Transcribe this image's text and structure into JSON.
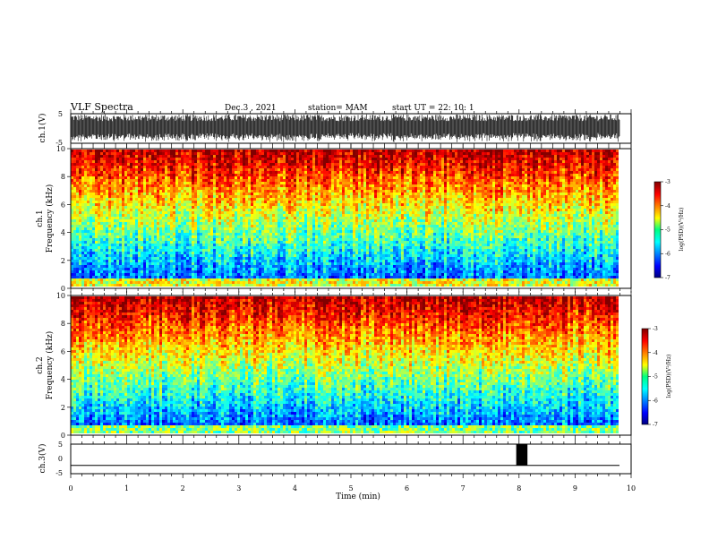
{
  "header": {
    "title": "VLF Spectra",
    "date": "Dec.3  , 2021",
    "station": "station= MAM",
    "start": "start  UT  =   22: 10: 1"
  },
  "chart_data": [
    {
      "type": "line",
      "name": "ch1-waveform",
      "ylabel": "ch.1(V)",
      "ylim": [
        -5,
        5
      ],
      "yticks": [
        "5",
        "-5"
      ],
      "xlim": [
        0,
        10
      ]
    },
    {
      "type": "heatmap",
      "name": "ch1-spectrogram",
      "ylabel_line1": "ch.1",
      "ylabel_line2": "Frequency  (kHz)",
      "ylim": [
        0,
        10
      ],
      "yticks": [
        "0",
        "2",
        "4",
        "6",
        "8",
        "10"
      ],
      "xlim": [
        0,
        9.8
      ],
      "colorbar": {
        "label": "log(PSD)(V²/Hz)",
        "range": [
          -7,
          -3
        ],
        "ticks": [
          "-3",
          "-4",
          "-5",
          "-6",
          "-7"
        ]
      }
    },
    {
      "type": "heatmap",
      "name": "ch2-spectrogram",
      "ylabel_line1": "ch.2",
      "ylabel_line2": "Frequency  (kHz)",
      "ylim": [
        0,
        10
      ],
      "yticks": [
        "0",
        "2",
        "4",
        "6",
        "8",
        "10"
      ],
      "xlim": [
        0,
        9.8
      ],
      "colorbar": {
        "label": "log(PSD)(V²/Hz)",
        "range": [
          -7,
          -3
        ],
        "ticks": [
          "-3",
          "-4",
          "-5",
          "-6",
          "-7"
        ]
      }
    },
    {
      "type": "line",
      "name": "ch3-signal",
      "ylabel": "ch.3(V)",
      "ylim": [
        -5,
        5
      ],
      "yticks": [
        "5",
        "0",
        "-5"
      ],
      "xlim": [
        0,
        10
      ],
      "baseline": -2.2,
      "pulse": {
        "x_start": 7.95,
        "x_end": 8.15,
        "y_top": 5,
        "y_bottom": -2.2
      }
    }
  ],
  "xaxis": {
    "label": "Time  (min)",
    "ticks": [
      "0",
      "1",
      "2",
      "3",
      "4",
      "5",
      "6",
      "7",
      "8",
      "9",
      "10"
    ],
    "range": [
      0,
      10
    ]
  }
}
